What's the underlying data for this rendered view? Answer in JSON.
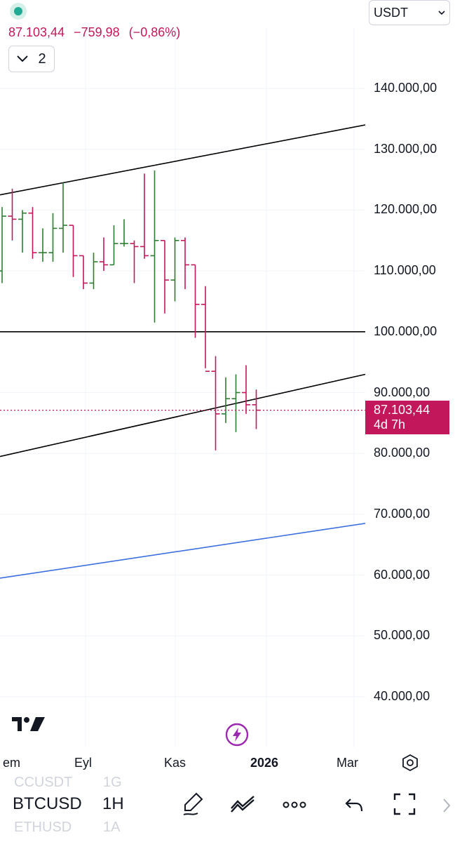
{
  "header": {
    "last_price": "87.103,44",
    "change": "−759,98",
    "change_percent": "(−0,86%)",
    "collapsed_count": "2",
    "currency": "USDT",
    "status_color": "#22ab94"
  },
  "price_axis": {
    "labels": [
      "140.000,00",
      "130.000,00",
      "120.000,00",
      "110.000,00",
      "100.000,00",
      "90.000,00",
      "80.000,00",
      "70.000,00",
      "60.000,00",
      "50.000,00",
      "40.000,00"
    ],
    "current_price": "87.103,44",
    "countdown": "4d 7h"
  },
  "time_axis": {
    "labels": [
      "em",
      "Eyl",
      "Kas",
      "2026",
      "Mar"
    ]
  },
  "colors": {
    "up": "#2e7d32",
    "down": "#c2185b",
    "trendline": "#000000",
    "support_line": "#3d6fe0"
  },
  "chart_data": {
    "type": "ohlc",
    "ylim": [
      37000,
      152000
    ],
    "grid": true,
    "bars": [
      {
        "o": 110000,
        "h": 120500,
        "l": 108000,
        "c": 119000
      },
      {
        "o": 119000,
        "h": 123500,
        "l": 115000,
        "c": 118500
      },
      {
        "o": 118500,
        "h": 120000,
        "l": 113000,
        "c": 119500
      },
      {
        "o": 119500,
        "h": 120500,
        "l": 112000,
        "c": 113000
      },
      {
        "o": 113000,
        "h": 117000,
        "l": 111500,
        "c": 113000
      },
      {
        "o": 113000,
        "h": 119500,
        "l": 111500,
        "c": 117000
      },
      {
        "o": 117000,
        "h": 124500,
        "l": 113000,
        "c": 117500
      },
      {
        "o": 117500,
        "h": 117500,
        "l": 109000,
        "c": 112500
      },
      {
        "o": 112500,
        "h": 112500,
        "l": 107000,
        "c": 108000
      },
      {
        "o": 108000,
        "h": 113000,
        "l": 107000,
        "c": 111500
      },
      {
        "o": 111500,
        "h": 115500,
        "l": 110000,
        "c": 111000
      },
      {
        "o": 111000,
        "h": 117500,
        "l": 111000,
        "c": 114500
      },
      {
        "o": 114500,
        "h": 118500,
        "l": 114000,
        "c": 114500
      },
      {
        "o": 114500,
        "h": 115000,
        "l": 108000,
        "c": 114000
      },
      {
        "o": 114000,
        "h": 126000,
        "l": 112000,
        "c": 112500
      },
      {
        "o": 112500,
        "h": 126500,
        "l": 101500,
        "c": 115000
      },
      {
        "o": 115000,
        "h": 115000,
        "l": 103000,
        "c": 108500
      },
      {
        "o": 108500,
        "h": 115500,
        "l": 105000,
        "c": 115000
      },
      {
        "o": 115000,
        "h": 115500,
        "l": 107000,
        "c": 111000
      },
      {
        "o": 111000,
        "h": 111000,
        "l": 99000,
        "c": 104500
      },
      {
        "o": 104500,
        "h": 107500,
        "l": 94000,
        "c": 93500
      },
      {
        "o": 93500,
        "h": 96000,
        "l": 80500,
        "c": 86500
      },
      {
        "o": 86500,
        "h": 92500,
        "l": 85000,
        "c": 89000
      },
      {
        "o": 89000,
        "h": 93000,
        "l": 83500,
        "c": 90000
      },
      {
        "o": 90000,
        "h": 94500,
        "l": 86500,
        "c": 88000
      },
      {
        "o": 88000,
        "h": 90500,
        "l": 84000,
        "c": 87103.44
      }
    ],
    "trendlines": [
      {
        "name": "upper-channel",
        "y_start": 122500,
        "y_end": 134000
      },
      {
        "name": "horizontal-100k",
        "y_start": 100000,
        "y_end": 100000
      },
      {
        "name": "lower-channel",
        "y_start": 79500,
        "y_end": 93000
      },
      {
        "name": "long-term-support",
        "y_start": 59500,
        "y_end": 68500
      }
    ]
  },
  "bottom_bar": {
    "symbol_above": "CCUSDT",
    "interval_above": "1G",
    "symbol": "BTCUSD",
    "interval": "1H",
    "symbol_below": "ETHUSD",
    "interval_below": "1A"
  }
}
